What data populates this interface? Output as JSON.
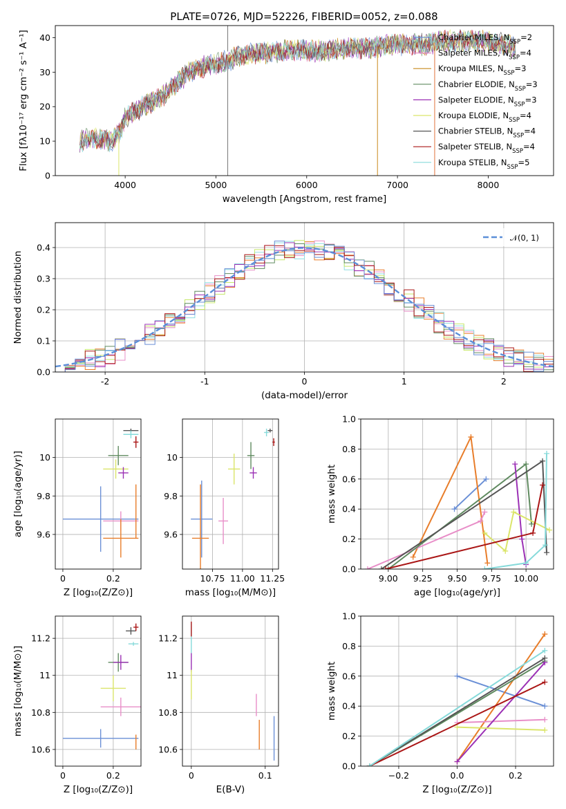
{
  "title": "PLATE=0726, MJD=52226, FIBERID=0052, z=0.088",
  "chart_data": [
    {
      "id": "spectrum",
      "type": "line",
      "xlabel": "wavelength [Angstrom, rest frame]",
      "ylabel": "Flux [fλ10⁻¹⁷ erg cm⁻² s⁻¹ A⁻¹]",
      "xlim": [
        3230,
        8720
      ],
      "ylim": [
        0,
        43.5
      ],
      "xticks": [
        4000,
        5000,
        6000,
        7000,
        8000
      ],
      "yticks": [
        0,
        10,
        20,
        30,
        40
      ],
      "grid": false,
      "legend_position": "top-right",
      "continuum": [
        [
          3500,
          10
        ],
        [
          3700,
          11
        ],
        [
          3850,
          10
        ],
        [
          3950,
          13
        ],
        [
          4000,
          17
        ],
        [
          4200,
          20
        ],
        [
          4350,
          22
        ],
        [
          4500,
          25
        ],
        [
          4700,
          30
        ],
        [
          4900,
          32
        ],
        [
          5100,
          33
        ],
        [
          5300,
          35
        ],
        [
          5500,
          35.5
        ],
        [
          5700,
          36
        ],
        [
          5900,
          36.5
        ],
        [
          6100,
          36
        ],
        [
          6300,
          36.5
        ],
        [
          6500,
          37
        ],
        [
          6700,
          37
        ],
        [
          6900,
          38
        ],
        [
          7100,
          38
        ],
        [
          7300,
          38
        ],
        [
          7500,
          39
        ],
        [
          7700,
          39
        ],
        [
          7900,
          39
        ],
        [
          8100,
          38.5
        ],
        [
          8300,
          37
        ]
      ],
      "series": [
        {
          "name": "Chabrier MILES, N",
          "sub": "SSP",
          "suffix": "=2",
          "color": "#6a8fd6"
        },
        {
          "name": "Salpeter MILES, N",
          "sub": "SSP",
          "suffix": "=4",
          "color": "#e88ec8"
        },
        {
          "name": "Kroupa MILES, N",
          "sub": "SSP",
          "suffix": "=3",
          "color": "#c98a1c"
        },
        {
          "name": "Chabrier ELODIE, N",
          "sub": "SSP",
          "suffix": "=3",
          "color": "#5f8a5f"
        },
        {
          "name": "Salpeter ELODIE, N",
          "sub": "SSP",
          "suffix": "=3",
          "color": "#9b30b5"
        },
        {
          "name": "Kroupa ELODIE, N",
          "sub": "SSP",
          "suffix": "=4",
          "color": "#dbe56a"
        },
        {
          "name": "Chabrier STELIB, N",
          "sub": "SSP",
          "suffix": "=4",
          "color": "#555555"
        },
        {
          "name": "Salpeter STELIB, N",
          "sub": "SSP",
          "suffix": "=4",
          "color": "#aa1616"
        },
        {
          "name": "Kroupa STELIB, N",
          "sub": "SSP",
          "suffix": "=5",
          "color": "#86dada"
        }
      ]
    },
    {
      "id": "residuals",
      "type": "histogram",
      "xlabel": "(data-model)/error",
      "ylabel": "Normed distribution",
      "xlim": [
        -2.5,
        2.5
      ],
      "ylim": [
        0,
        0.48
      ],
      "xticks": [
        -2,
        -1,
        0,
        1,
        2
      ],
      "yticks": [
        0.0,
        0.1,
        0.2,
        0.3,
        0.4
      ],
      "grid": true,
      "legend_position": "top-right",
      "legend": "𝒩(0, 1)",
      "bin_width": 0.1,
      "series_colors": [
        "#e87d2a",
        "#e88ec8",
        "#8fdde0",
        "#c6e86a",
        "#5f8a5f",
        "#9b30b5",
        "#aa1616",
        "#6a8fd6"
      ],
      "gaussian_color": "#5b8fd8"
    },
    {
      "id": "age-vs-Z",
      "type": "errorbar",
      "xlabel": "Z [log₁₀(Z/Z⊙)]",
      "ylabel": "age  [log₁₀(age/yr)]",
      "xlim": [
        -0.03,
        0.31
      ],
      "ylim": [
        9.42,
        10.2
      ],
      "xticks": [
        0.0,
        0.2
      ],
      "yticks": [
        9.6,
        9.8,
        10.0
      ],
      "grid": true,
      "points": [
        {
          "x": 0.15,
          "y": 9.68,
          "xerr": 0.15,
          "yerr": 0.17,
          "color": "#6a8fd6"
        },
        {
          "x": 0.23,
          "y": 9.67,
          "xerr": 0.07,
          "yerr": 0.05,
          "color": "#e88ec8"
        },
        {
          "x": 0.23,
          "y": 9.58,
          "xerr": 0.07,
          "yerr": 0.1,
          "color": "#e87d2a"
        },
        {
          "x": 0.29,
          "y": 9.72,
          "xerr": 0.0,
          "yerr": 0.14,
          "color": "#e87d2a"
        },
        {
          "x": 0.21,
          "y": 9.94,
          "xerr": 0.05,
          "yerr": 0.05,
          "color": "#dbe56a"
        },
        {
          "x": 0.22,
          "y": 10.01,
          "xerr": 0.04,
          "yerr": 0.05,
          "color": "#5f8a5f"
        },
        {
          "x": 0.24,
          "y": 9.92,
          "xerr": 0.02,
          "yerr": 0.03,
          "color": "#9b30b5"
        },
        {
          "x": 0.27,
          "y": 10.14,
          "xerr": 0.03,
          "yerr": 0.01,
          "color": "#555555"
        },
        {
          "x": 0.29,
          "y": 10.08,
          "xerr": 0.01,
          "yerr": 0.03,
          "color": "#aa1616"
        },
        {
          "x": 0.27,
          "y": 10.12,
          "xerr": 0.03,
          "yerr": 0.02,
          "color": "#86dada"
        }
      ]
    },
    {
      "id": "age-vs-mass",
      "type": "errorbar",
      "xlabel": "mass [log₁₀(M/M⊙)]",
      "ylabel": "",
      "xlim": [
        10.5,
        11.3
      ],
      "ylim": [
        9.42,
        10.2
      ],
      "xticks": [
        10.75,
        11.0,
        11.25
      ],
      "xticklabels": [
        "10.75",
        "11.00",
        "11.25"
      ],
      "yticks": [
        9.6,
        9.8,
        10.0
      ],
      "grid": true,
      "points": [
        {
          "x": 10.66,
          "y": 9.68,
          "xerr": 0.09,
          "yerr": 0.2,
          "color": "#6a8fd6"
        },
        {
          "x": 10.65,
          "y": 9.58,
          "xerr": 0.07,
          "yerr": 0.28,
          "color": "#e87d2a"
        },
        {
          "x": 10.84,
          "y": 9.67,
          "xerr": 0.04,
          "yerr": 0.12,
          "color": "#e88ec8"
        },
        {
          "x": 10.93,
          "y": 9.94,
          "xerr": 0.05,
          "yerr": 0.08,
          "color": "#dbe56a"
        },
        {
          "x": 11.07,
          "y": 10.01,
          "xerr": 0.03,
          "yerr": 0.07,
          "color": "#5f8a5f"
        },
        {
          "x": 11.09,
          "y": 9.92,
          "xerr": 0.03,
          "yerr": 0.03,
          "color": "#9b30b5"
        },
        {
          "x": 11.2,
          "y": 10.13,
          "xerr": 0.02,
          "yerr": 0.02,
          "color": "#86dada"
        },
        {
          "x": 11.23,
          "y": 10.14,
          "xerr": 0.02,
          "yerr": 0.01,
          "color": "#555555"
        },
        {
          "x": 11.26,
          "y": 10.08,
          "xerr": 0.01,
          "yerr": 0.02,
          "color": "#aa1616"
        }
      ]
    },
    {
      "id": "weight-vs-age",
      "type": "line",
      "xlabel": "age  [log₁₀(age/yr)]",
      "ylabel": "mass weight",
      "xlim": [
        8.8,
        10.2
      ],
      "ylim": [
        0,
        1.0
      ],
      "xticks": [
        9.0,
        9.25,
        9.5,
        9.75,
        10.0
      ],
      "xticklabels": [
        "9.00",
        "9.25",
        "9.50",
        "9.75",
        "10.00"
      ],
      "yticks": [
        0.0,
        0.2,
        0.4,
        0.6,
        0.8,
        1.0
      ],
      "grid": true,
      "series": [
        {
          "color": "#6a8fd6",
          "x": [
            9.48,
            9.71
          ],
          "y": [
            0.4,
            0.6
          ]
        },
        {
          "color": "#e87d2a",
          "x": [
            9.18,
            9.6,
            9.72
          ],
          "y": [
            0.08,
            0.88,
            0.04
          ]
        },
        {
          "color": "#e88ec8",
          "x": [
            8.85,
            9.67,
            9.7
          ],
          "y": [
            0.0,
            0.32,
            0.38
          ]
        },
        {
          "color": "#5f8a5f",
          "x": [
            9.0,
            10.0,
            10.04
          ],
          "y": [
            0.0,
            0.7,
            0.3
          ]
        },
        {
          "color": "#9b30b5",
          "x": [
            9.92,
            9.97,
            10.0
          ],
          "y": [
            0.7,
            0.2,
            0.03
          ]
        },
        {
          "color": "#dbe56a",
          "x": [
            9.7,
            9.85,
            9.91,
            10.17
          ],
          "y": [
            0.24,
            0.12,
            0.38,
            0.26
          ]
        },
        {
          "color": "#555555",
          "x": [
            8.95,
            10.12,
            10.15
          ],
          "y": [
            0.0,
            0.72,
            0.11
          ]
        },
        {
          "color": "#aa1616",
          "x": [
            8.98,
            10.05,
            10.12
          ],
          "y": [
            0.0,
            0.24,
            0.56
          ]
        },
        {
          "color": "#86dada",
          "x": [
            9.7,
            10.0,
            10.14,
            10.15
          ],
          "y": [
            0.0,
            0.04,
            0.16,
            0.77
          ]
        }
      ]
    },
    {
      "id": "mass-vs-Z",
      "type": "errorbar",
      "xlabel": "Z [log₁₀(Z/Z⊙)]",
      "ylabel": "mass [log₁₀(M/M⊙)]",
      "xlim": [
        -0.03,
        0.31
      ],
      "ylim": [
        10.51,
        11.32
      ],
      "xticks": [
        0.0,
        0.2
      ],
      "yticks": [
        10.6,
        10.8,
        11.0,
        11.2
      ],
      "grid": true,
      "points": [
        {
          "x": 0.15,
          "y": 10.66,
          "xerr": 0.15,
          "yerr": 0.05,
          "color": "#6a8fd6"
        },
        {
          "x": 0.23,
          "y": 10.83,
          "xerr": 0.08,
          "yerr": 0.05,
          "color": "#e88ec8"
        },
        {
          "x": 0.29,
          "y": 10.64,
          "xerr": 0.0,
          "yerr": 0.04,
          "color": "#e87d2a"
        },
        {
          "x": 0.2,
          "y": 10.93,
          "xerr": 0.05,
          "yerr": 0.07,
          "color": "#dbe56a"
        },
        {
          "x": 0.22,
          "y": 11.07,
          "xerr": 0.04,
          "yerr": 0.05,
          "color": "#5f8a5f"
        },
        {
          "x": 0.23,
          "y": 11.07,
          "xerr": 0.03,
          "yerr": 0.04,
          "color": "#9b30b5"
        },
        {
          "x": 0.27,
          "y": 11.24,
          "xerr": 0.02,
          "yerr": 0.02,
          "color": "#555555"
        },
        {
          "x": 0.29,
          "y": 11.26,
          "xerr": 0.01,
          "yerr": 0.02,
          "color": "#aa1616"
        },
        {
          "x": 0.28,
          "y": 11.17,
          "xerr": 0.02,
          "yerr": 0.01,
          "color": "#86dada"
        }
      ]
    },
    {
      "id": "mass-vs-ebv",
      "type": "errorbar",
      "xlabel": "E(B-V)",
      "ylabel": "",
      "xlim": [
        -0.012,
        0.118
      ],
      "ylim": [
        10.51,
        11.32
      ],
      "xticks": [
        0.0,
        0.1
      ],
      "yticks": [
        10.6,
        10.8,
        11.0,
        11.2
      ],
      "grid": true,
      "points": [
        {
          "x": 0.0,
          "y": 11.2,
          "xerr": 0,
          "yerr": 0.08,
          "color": "#86dada"
        },
        {
          "x": 0.0,
          "y": 11.25,
          "xerr": 0,
          "yerr": 0.04,
          "color": "#aa1616"
        },
        {
          "x": 0.0,
          "y": 11.07,
          "xerr": 0,
          "yerr": 0.05,
          "color": "#9b30b5"
        },
        {
          "x": 0.0,
          "y": 10.95,
          "xerr": 0,
          "yerr": 0.08,
          "color": "#dbe56a"
        },
        {
          "x": 0.088,
          "y": 10.84,
          "xerr": 0,
          "yerr": 0.06,
          "color": "#e88ec8"
        },
        {
          "x": 0.092,
          "y": 10.68,
          "xerr": 0,
          "yerr": 0.08,
          "color": "#e87d2a"
        },
        {
          "x": 0.112,
          "y": 10.66,
          "xerr": 0,
          "yerr": 0.12,
          "color": "#6a8fd6"
        }
      ]
    },
    {
      "id": "weight-vs-Z",
      "type": "line",
      "xlabel": "Z [log₁₀(Z/Z⊙)]",
      "ylabel": "mass weight",
      "xlim": [
        -0.33,
        0.33
      ],
      "ylim": [
        0,
        1.0
      ],
      "xticks": [
        -0.2,
        0.0,
        0.2
      ],
      "xticklabels": [
        "−0.2",
        "0.0",
        "0.2"
      ],
      "yticks": [
        0.0,
        0.2,
        0.4,
        0.6,
        0.8,
        1.0
      ],
      "grid": true,
      "series": [
        {
          "color": "#6a8fd6",
          "x": [
            0.0,
            0.3
          ],
          "y": [
            0.6,
            0.4
          ]
        },
        {
          "color": "#e87d2a",
          "x": [
            0.0,
            0.3
          ],
          "y": [
            0.03,
            0.88
          ]
        },
        {
          "color": "#e88ec8",
          "x": [
            0.0,
            0.3
          ],
          "y": [
            0.29,
            0.31
          ]
        },
        {
          "color": "#5f8a5f",
          "x": [
            -0.3,
            0.3
          ],
          "y": [
            0.0,
            0.7
          ]
        },
        {
          "color": "#9b30b5",
          "x": [
            0.0,
            0.3
          ],
          "y": [
            0.03,
            0.69
          ]
        },
        {
          "color": "#dbe56a",
          "x": [
            0.0,
            0.3
          ],
          "y": [
            0.26,
            0.24
          ]
        },
        {
          "color": "#555555",
          "x": [
            -0.3,
            0.3
          ],
          "y": [
            0.0,
            0.72
          ]
        },
        {
          "color": "#aa1616",
          "x": [
            -0.3,
            0.3
          ],
          "y": [
            0.0,
            0.56
          ]
        },
        {
          "color": "#86dada",
          "x": [
            -0.3,
            0.3
          ],
          "y": [
            0.0,
            0.77
          ]
        }
      ]
    }
  ]
}
